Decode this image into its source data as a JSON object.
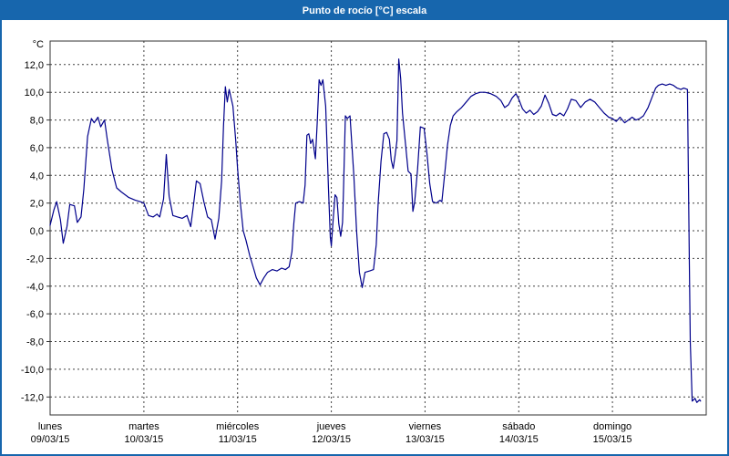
{
  "window": {
    "title": "Punto de rocío [°C] escala"
  },
  "colors": {
    "window_border": "#1766ad",
    "title_bar": "#1766ad",
    "title_text": "#ffffff",
    "background": "#ffffff",
    "grid": "#404040",
    "axis": "#333333",
    "text": "#000000",
    "line": "#00008b"
  },
  "chart_data": {
    "type": "line",
    "title": "Punto de rocío [°C] escala",
    "y_unit_label": "°C",
    "ylabel": "Punto de rocío [°C]",
    "ylim": [
      -13.3,
      13.7
    ],
    "xlim": [
      0,
      7
    ],
    "grid": "dashed",
    "legend": "none",
    "yticks": [
      12,
      10,
      8,
      6,
      4,
      2,
      0,
      -2,
      -4,
      -6,
      -8,
      -10,
      -12
    ],
    "ytick_labels": [
      "12,0",
      "10,0",
      "8,0",
      "6,0",
      "4,0",
      "2,0",
      "0,0",
      "-2,0",
      "-4,0",
      "-6,0",
      "-8,0",
      "-10,0",
      "-12,0"
    ],
    "x_days": [
      {
        "name": "lunes",
        "date": "09/03/15"
      },
      {
        "name": "martes",
        "date": "10/03/15"
      },
      {
        "name": "miércoles",
        "date": "11/03/15"
      },
      {
        "name": "jueves",
        "date": "12/03/15"
      },
      {
        "name": "viernes",
        "date": "13/03/15"
      },
      {
        "name": "sábado",
        "date": "14/03/15"
      },
      {
        "name": "domingo",
        "date": "15/03/15"
      }
    ],
    "series": [
      {
        "id": "dew-point",
        "name": "Punto de rocío",
        "color": "#00008b",
        "points": [
          [
            0,
            0.4
          ],
          [
            0.04,
            1.5
          ],
          [
            0.07,
            2.1
          ],
          [
            0.11,
            0.8
          ],
          [
            0.14,
            -0.9
          ],
          [
            0.18,
            0.3
          ],
          [
            0.21,
            1.9
          ],
          [
            0.26,
            1.8
          ],
          [
            0.29,
            0.6
          ],
          [
            0.33,
            1
          ],
          [
            0.36,
            3
          ],
          [
            0.4,
            6.8
          ],
          [
            0.44,
            8.1
          ],
          [
            0.47,
            7.8
          ],
          [
            0.51,
            8.2
          ],
          [
            0.54,
            7.5
          ],
          [
            0.58,
            8
          ],
          [
            0.61,
            6.6
          ],
          [
            0.66,
            4.4
          ],
          [
            0.71,
            3.1
          ],
          [
            0.76,
            2.8
          ],
          [
            0.84,
            2.4
          ],
          [
            0.91,
            2.2
          ],
          [
            0.96,
            2.1
          ],
          [
            1,
            2
          ],
          [
            1.05,
            1.1
          ],
          [
            1.1,
            1
          ],
          [
            1.14,
            1.2
          ],
          [
            1.17,
            1
          ],
          [
            1.21,
            2.3
          ],
          [
            1.24,
            5.5
          ],
          [
            1.27,
            2.5
          ],
          [
            1.31,
            1.1
          ],
          [
            1.36,
            1
          ],
          [
            1.41,
            0.9
          ],
          [
            1.46,
            1.1
          ],
          [
            1.5,
            0.3
          ],
          [
            1.53,
            1.9
          ],
          [
            1.56,
            3.6
          ],
          [
            1.6,
            3.4
          ],
          [
            1.64,
            2.1
          ],
          [
            1.68,
            1
          ],
          [
            1.72,
            0.8
          ],
          [
            1.76,
            -0.6
          ],
          [
            1.8,
            0.9
          ],
          [
            1.83,
            3.6
          ],
          [
            1.85,
            7.6
          ],
          [
            1.87,
            10.4
          ],
          [
            1.89,
            9.3
          ],
          [
            1.91,
            10.2
          ],
          [
            1.95,
            9
          ],
          [
            1.98,
            6.5
          ],
          [
            2,
            4.5
          ],
          [
            2.03,
            2
          ],
          [
            2.06,
            0
          ],
          [
            2.09,
            -0.7
          ],
          [
            2.13,
            -1.8
          ],
          [
            2.17,
            -2.7
          ],
          [
            2.2,
            -3.4
          ],
          [
            2.24,
            -3.9
          ],
          [
            2.28,
            -3.4
          ],
          [
            2.32,
            -3
          ],
          [
            2.37,
            -2.8
          ],
          [
            2.42,
            -2.9
          ],
          [
            2.47,
            -2.7
          ],
          [
            2.51,
            -2.8
          ],
          [
            2.55,
            -2.6
          ],
          [
            2.58,
            -1.5
          ],
          [
            2.6,
            0.5
          ],
          [
            2.62,
            2
          ],
          [
            2.66,
            2.1
          ],
          [
            2.7,
            2
          ],
          [
            2.72,
            3.3
          ],
          [
            2.74,
            6.9
          ],
          [
            2.76,
            7
          ],
          [
            2.78,
            6.3
          ],
          [
            2.8,
            6.6
          ],
          [
            2.83,
            5.2
          ],
          [
            2.85,
            7.8
          ],
          [
            2.87,
            10.9
          ],
          [
            2.89,
            10.5
          ],
          [
            2.91,
            10.9
          ],
          [
            2.94,
            9
          ],
          [
            2.97,
            3
          ],
          [
            2.99,
            -0.5
          ],
          [
            3,
            -1.1
          ],
          [
            3.02,
            0.8
          ],
          [
            3.04,
            2.6
          ],
          [
            3.06,
            2.4
          ],
          [
            3.08,
            0.5
          ],
          [
            3.1,
            -0.4
          ],
          [
            3.12,
            0.6
          ],
          [
            3.13,
            2.8
          ],
          [
            3.15,
            8.3
          ],
          [
            3.17,
            8.1
          ],
          [
            3.2,
            8.3
          ],
          [
            3.24,
            4
          ],
          [
            3.27,
            0
          ],
          [
            3.3,
            -3
          ],
          [
            3.33,
            -4.1
          ],
          [
            3.36,
            -3
          ],
          [
            3.41,
            -2.9
          ],
          [
            3.45,
            -2.8
          ],
          [
            3.48,
            -1
          ],
          [
            3.5,
            2
          ],
          [
            3.53,
            5
          ],
          [
            3.56,
            7
          ],
          [
            3.59,
            7.1
          ],
          [
            3.62,
            6.6
          ],
          [
            3.64,
            5.1
          ],
          [
            3.66,
            4.5
          ],
          [
            3.68,
            5.4
          ],
          [
            3.7,
            6.5
          ],
          [
            3.72,
            12.4
          ],
          [
            3.74,
            11
          ],
          [
            3.76,
            8.5
          ],
          [
            3.79,
            6.4
          ],
          [
            3.82,
            4.3
          ],
          [
            3.85,
            4.1
          ],
          [
            3.87,
            1.4
          ],
          [
            3.89,
            2.1
          ],
          [
            3.92,
            4.4
          ],
          [
            3.95,
            7.5
          ],
          [
            3.99,
            7.4
          ],
          [
            4.02,
            5.6
          ],
          [
            4.05,
            3.4
          ],
          [
            4.08,
            2.1
          ],
          [
            4.12,
            2
          ],
          [
            4.16,
            2.2
          ],
          [
            4.18,
            2.1
          ],
          [
            4.21,
            4.1
          ],
          [
            4.24,
            6.2
          ],
          [
            4.27,
            7.6
          ],
          [
            4.3,
            8.3
          ],
          [
            4.34,
            8.6
          ],
          [
            4.39,
            8.9
          ],
          [
            4.44,
            9.3
          ],
          [
            4.49,
            9.7
          ],
          [
            4.54,
            9.9
          ],
          [
            4.59,
            10
          ],
          [
            4.64,
            10
          ],
          [
            4.7,
            9.9
          ],
          [
            4.76,
            9.7
          ],
          [
            4.81,
            9.4
          ],
          [
            4.85,
            8.9
          ],
          [
            4.89,
            9.1
          ],
          [
            4.93,
            9.6
          ],
          [
            4.97,
            9.9
          ],
          [
            5,
            9.5
          ],
          [
            5.04,
            8.8
          ],
          [
            5.08,
            8.5
          ],
          [
            5.12,
            8.7
          ],
          [
            5.16,
            8.4
          ],
          [
            5.2,
            8.6
          ],
          [
            5.24,
            9
          ],
          [
            5.28,
            9.8
          ],
          [
            5.32,
            9.2
          ],
          [
            5.36,
            8.4
          ],
          [
            5.4,
            8.3
          ],
          [
            5.44,
            8.5
          ],
          [
            5.48,
            8.3
          ],
          [
            5.52,
            8.8
          ],
          [
            5.56,
            9.5
          ],
          [
            5.61,
            9.4
          ],
          [
            5.66,
            8.9
          ],
          [
            5.71,
            9.3
          ],
          [
            5.76,
            9.5
          ],
          [
            5.81,
            9.3
          ],
          [
            5.86,
            8.9
          ],
          [
            5.91,
            8.5
          ],
          [
            5.96,
            8.2
          ],
          [
            6,
            8.1
          ],
          [
            6.04,
            7.9
          ],
          [
            6.08,
            8.2
          ],
          [
            6.13,
            7.8
          ],
          [
            6.17,
            8
          ],
          [
            6.21,
            8.2
          ],
          [
            6.25,
            8
          ],
          [
            6.29,
            8.1
          ],
          [
            6.33,
            8.3
          ],
          [
            6.38,
            8.9
          ],
          [
            6.42,
            9.6
          ],
          [
            6.46,
            10.3
          ],
          [
            6.49,
            10.5
          ],
          [
            6.53,
            10.6
          ],
          [
            6.57,
            10.5
          ],
          [
            6.61,
            10.6
          ],
          [
            6.65,
            10.5
          ],
          [
            6.69,
            10.3
          ],
          [
            6.73,
            10.2
          ],
          [
            6.76,
            10.3
          ],
          [
            6.8,
            10.2
          ],
          [
            6.82,
            -2.4
          ],
          [
            6.83,
            -8
          ],
          [
            6.85,
            -12.3
          ],
          [
            6.88,
            -12.1
          ],
          [
            6.9,
            -12.4
          ],
          [
            6.93,
            -12.2
          ],
          [
            6.94,
            -12.3
          ]
        ]
      }
    ]
  }
}
